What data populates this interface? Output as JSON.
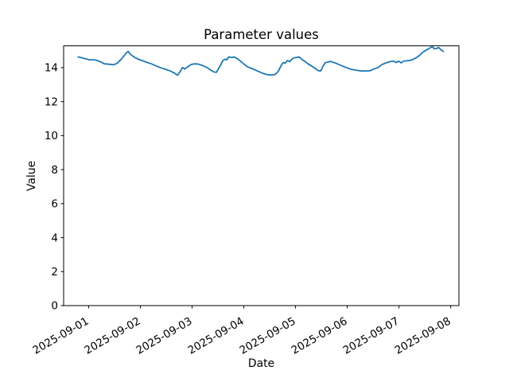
{
  "figure": {
    "background": "#ffffff",
    "text_color": "#000000",
    "spine_color": "#000000"
  },
  "chart_data": {
    "type": "line",
    "title": "Parameter values",
    "xlabel": "Date",
    "ylabel": "Value",
    "xtick_labels": [
      "2025-09-01",
      "2025-09-02",
      "2025-09-03",
      "2025-09-04",
      "2025-09-05",
      "2025-09-06",
      "2025-09-07",
      "2025-09-08"
    ],
    "xtick_hours": [
      0,
      24,
      48,
      72,
      96,
      120,
      144,
      168
    ],
    "yticks": [
      0,
      2,
      4,
      6,
      8,
      10,
      12,
      14
    ],
    "ylim": [
      0,
      15.28
    ],
    "xlim_hours": [
      -11.6,
      171.8
    ],
    "x_epoch": "2025-09-01T00:00",
    "grid": false,
    "legend": false,
    "line_color": "#1f77b4",
    "series": [
      {
        "name": "parameter",
        "x_hours": [
          -4.9,
          -3.1,
          -1.6,
          0.3,
          2.5,
          4.0,
          5.8,
          7.3,
          9.5,
          11.7,
          13.2,
          15.0,
          16.5,
          17.6,
          18.4,
          19.1,
          20.2,
          21.7,
          23.2,
          25.0,
          26.8,
          29.1,
          31.3,
          33.5,
          35.7,
          37.9,
          39.8,
          41.2,
          42.4,
          43.5,
          44.6,
          46.0,
          47.5,
          49.0,
          50.8,
          52.3,
          54.2,
          55.6,
          57.1,
          58.2,
          59.3,
          60.8,
          62.3,
          63.4,
          64.1,
          64.9,
          66.3,
          67.8,
          69.3,
          70.8,
          72.3,
          73.7,
          75.6,
          77.4,
          79.3,
          81.1,
          83.0,
          84.8,
          86.6,
          88.1,
          89.2,
          90.3,
          91.1,
          92.2,
          93.3,
          94.4,
          95.5,
          96.6,
          97.7,
          98.8,
          99.9,
          101.8,
          103.6,
          105.5,
          106.6,
          107.7,
          108.8,
          109.9,
          111.0,
          112.1,
          113.2,
          114.3,
          115.8,
          117.7,
          119.5,
          121.4,
          123.2,
          125.1,
          126.9,
          128.7,
          130.6,
          132.4,
          134.3,
          136.1,
          138.0,
          139.8,
          141.3,
          142.8,
          143.9,
          145.0,
          146.1,
          147.6,
          149.1,
          150.5,
          152.0,
          153.5,
          155.0,
          156.5,
          157.9,
          159.4,
          160.5,
          161.6,
          162.4,
          163.5,
          164.6
        ],
        "y": [
          14.63,
          14.58,
          14.52,
          14.46,
          14.46,
          14.42,
          14.32,
          14.22,
          14.2,
          14.17,
          14.25,
          14.48,
          14.7,
          14.88,
          14.95,
          14.82,
          14.7,
          14.58,
          14.49,
          14.4,
          14.32,
          14.22,
          14.1,
          13.99,
          13.9,
          13.8,
          13.68,
          13.55,
          13.75,
          14.0,
          13.92,
          14.05,
          14.18,
          14.22,
          14.21,
          14.15,
          14.05,
          13.95,
          13.82,
          13.74,
          13.72,
          14.05,
          14.42,
          14.5,
          14.45,
          14.62,
          14.6,
          14.62,
          14.5,
          14.35,
          14.18,
          14.05,
          13.95,
          13.85,
          13.75,
          13.65,
          13.58,
          13.56,
          13.6,
          13.8,
          14.1,
          14.3,
          14.25,
          14.42,
          14.35,
          14.52,
          14.58,
          14.6,
          14.62,
          14.5,
          14.4,
          14.22,
          14.08,
          13.92,
          13.82,
          13.8,
          14.1,
          14.3,
          14.32,
          14.37,
          14.32,
          14.28,
          14.2,
          14.1,
          14.0,
          13.92,
          13.87,
          13.83,
          13.8,
          13.8,
          13.82,
          13.92,
          14.0,
          14.18,
          14.28,
          14.35,
          14.38,
          14.3,
          14.38,
          14.28,
          14.38,
          14.4,
          14.42,
          14.48,
          14.58,
          14.72,
          14.9,
          15.02,
          15.12,
          15.23,
          15.1,
          15.13,
          15.18,
          15.05,
          14.95
        ]
      }
    ]
  }
}
